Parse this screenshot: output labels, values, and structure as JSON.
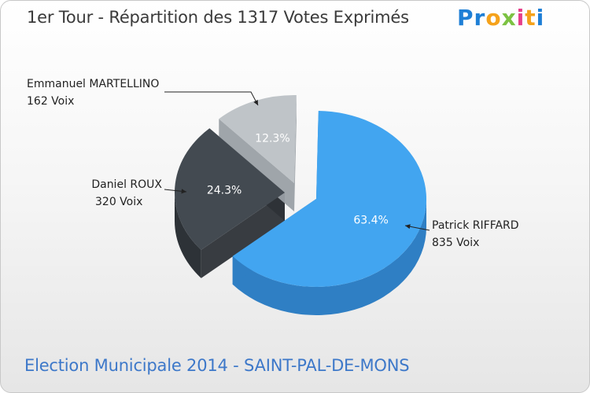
{
  "title": "1er Tour - Répartition des 1317 Votes Exprimés",
  "subtitle": "Election Municipale 2014 - SAINT-PAL-DE-MONS",
  "logo": {
    "letters": [
      "P",
      "r",
      "o",
      "x",
      "i",
      "t",
      "i"
    ],
    "colors": [
      "#1e7fd6",
      "#1e7fd6",
      "#f5a21b",
      "#7cc242",
      "#e63e8a",
      "#f5a21b",
      "#1e7fd6"
    ]
  },
  "chart_data": {
    "type": "pie",
    "title": "1er Tour - Répartition des 1317 Votes Exprimés",
    "total_votes": 1317,
    "series": [
      {
        "name": "Patrick RIFFARD",
        "votes": 835,
        "votes_label": "835 Voix",
        "percent": 63.4,
        "percent_label": "63.4%",
        "color": "#42a5f0",
        "side_color": "#2f7fc4",
        "text_color": "#ffffff"
      },
      {
        "name": "Daniel ROUX",
        "votes": 320,
        "votes_label": "320 Voix",
        "percent": 24.3,
        "percent_label": "24.3%",
        "color": "#434a51",
        "side_color": "#2d3237",
        "text_color": "#ffffff"
      },
      {
        "name": "Emmanuel MARTELLINO",
        "votes": 162,
        "votes_label": "162 Voix",
        "percent": 12.3,
        "percent_label": "12.3%",
        "color": "#bfc4c8",
        "side_color": "#9aa0a5",
        "text_color": "#ffffff"
      }
    ]
  }
}
